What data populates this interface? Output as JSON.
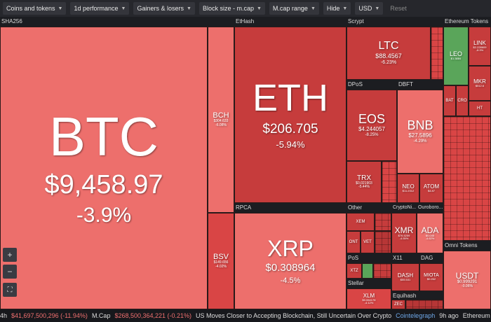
{
  "toolbar": {
    "coins": "Coins and tokens",
    "performance": "1d performance",
    "gainers": "Gainers & losers",
    "block": "Block size - m.cap",
    "mcap": "M.cap range",
    "hide": "Hide",
    "currency": "USD",
    "reset": "Reset"
  },
  "groups": {
    "sha256": "SHA256",
    "ethash": "EtHash",
    "scrypt": "Scrypt",
    "eth_tokens": "Ethereum Tokens",
    "dpos": "DPoS",
    "dbft": "DBFT",
    "rpca": "RPCA",
    "other": "Other",
    "cryptonight": "CryptoNi...",
    "ouroboros": "Ouroboro...",
    "pos": "PoS",
    "x11": "X11",
    "dag": "DAG",
    "omni": "Omni Tokens",
    "stellar": "Stellar",
    "equihash": "Equihash"
  },
  "coins": {
    "btc": {
      "symbol": "BTC",
      "price": "$9,458.97",
      "change": "-3.9%"
    },
    "eth": {
      "symbol": "ETH",
      "price": "$206.705",
      "change": "-5.94%"
    },
    "xrp": {
      "symbol": "XRP",
      "price": "$0.308964",
      "change": "-4.5%"
    },
    "bch": {
      "symbol": "BCH",
      "price": "$304.633",
      "change": "-6.08%"
    },
    "bsv": {
      "symbol": "BSV",
      "price": "$149.656",
      "change": "-4.02%"
    },
    "ltc": {
      "symbol": "LTC",
      "price": "$88.4567",
      "change": "-6.23%"
    },
    "eos": {
      "symbol": "EOS",
      "price": "$4.244057",
      "change": "-8.25%"
    },
    "bnb": {
      "symbol": "BNB",
      "price": "$27.5896",
      "change": "-4.29%"
    },
    "trx": {
      "symbol": "TRX",
      "price": "$0.021903",
      "change": "-5.44%"
    },
    "neo": {
      "symbol": "NEO",
      "price": "$11.2312",
      "change": "-5.59%"
    },
    "atom": {
      "symbol": "ATOM",
      "price": "$4.87",
      "change": "-4.18%"
    },
    "xmr": {
      "symbol": "XMR",
      "price": "$76.5259",
      "change": "-4.55%"
    },
    "ada": {
      "symbol": "ADA",
      "price": "$0.045",
      "change": "-4.62%"
    },
    "xlm": {
      "symbol": "XLM",
      "price": "$0.064178",
      "change": "-4.12%"
    },
    "usdt": {
      "symbol": "USDT",
      "price": "$0.999291",
      "change": "-0.06%"
    },
    "link": {
      "symbol": "LINK",
      "price": "$2.228609",
      "change": "-8.3%"
    },
    "leo": {
      "symbol": "LEO",
      "price": "$1.3884",
      "change": "-1.5%"
    },
    "mkr": {
      "symbol": "MKR",
      "price": "$512.6",
      "change": "-5.1%"
    },
    "xem": {
      "symbol": "XEM"
    },
    "ont": {
      "symbol": "ONT"
    },
    "vet": {
      "symbol": "VET"
    },
    "xtz": {
      "symbol": "XTZ"
    },
    "dash": {
      "symbol": "DASH",
      "price": "$55.531"
    },
    "miota": {
      "symbol": "MIOTA",
      "price": "$0.262"
    },
    "zec": {
      "symbol": "ZEC"
    },
    "bat": {
      "symbol": "BAT"
    },
    "cro": {
      "symbol": "CRO"
    },
    "ht": {
      "symbol": "HT"
    }
  },
  "zoom": {
    "plus": "+",
    "minus": "−",
    "fit": "⛶"
  },
  "ticker": {
    "vol_label": "4h",
    "vol_value": "$41,697,500,296 (-11.94%)",
    "mcap_label": "M.Cap",
    "mcap_value": "$268,500,364,221 (-0.21%)",
    "headline": "US Moves Closer to Accepting Blockchain, Still Uncertain Over Crypto",
    "source": "Cointelegraph",
    "age": "9h ago",
    "next": "Ethereum Blockc"
  }
}
